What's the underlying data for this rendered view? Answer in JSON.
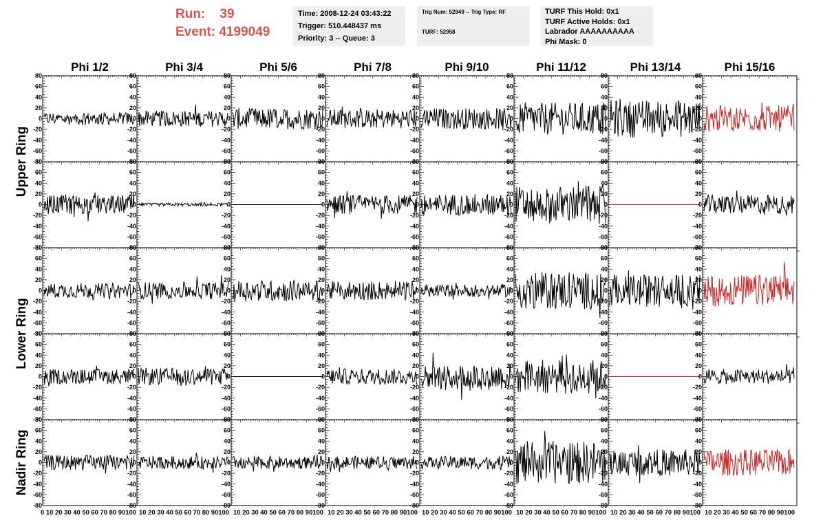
{
  "header": {
    "run_label": "Run:",
    "run_value": "39",
    "event_label": "Event:",
    "event_value": "4199049"
  },
  "info_box_1": {
    "time": "Time: 2008-12-24 03:43:22",
    "trigger": "Trigger: 510.448437 ms",
    "priority": "Priority: 3 -- Queue: 3"
  },
  "info_box_2": {
    "trig": "Trig Num: 52949 -- Trig Type: RF",
    "turf": "TURF: 52958"
  },
  "info_box_3": {
    "hold": "TURF This Hold: 0x1",
    "active": "TURF Active Holds: 0x1",
    "labrador": "Labrador AAAAAAAAAA",
    "phimask": "Phi Mask: 0"
  },
  "colors": {
    "trace": "#000000",
    "highlight": "#cc2222",
    "header_red": "#d9534f"
  },
  "chart_data": {
    "type": "line",
    "columns": [
      "Phi 1/2",
      "Phi 3/4",
      "Phi 5/6",
      "Phi 7/8",
      "Phi 9/10",
      "Phi 11/12",
      "Phi 13/14",
      "Phi 15/16"
    ],
    "ring_labels": [
      {
        "text": "Upper Ring",
        "rows": [
          0,
          1
        ]
      },
      {
        "text": "Lower Ring",
        "rows": [
          2,
          3
        ]
      },
      {
        "text": "Nadir Ring",
        "rows": [
          4,
          4
        ]
      }
    ],
    "xlim": [
      0,
      100
    ],
    "ylim": [
      -80,
      80
    ],
    "y_ticks": [
      "80",
      "60",
      "40",
      "20",
      "0",
      "-20",
      "-40",
      "-60",
      "-80"
    ],
    "x_tick_text": [
      "0 10 20 30 40 50 60 70 80 90100",
      "10 20 30 40 50 60 70 80 90100",
      "10 20 30 40 50 60 70 80 90100",
      "10 20 30 40 50 60 70 80 90100",
      "10 20 30 40 50 60 70 80 90100",
      "10 20 30 40 50 60 70 80 90100",
      "10 20 30 40 50 60 70 80 90100",
      "10 20 30 40 50 60 70 80 90100"
    ],
    "amplitudes": [
      [
        12,
        15,
        20,
        18,
        20,
        30,
        35,
        25
      ],
      [
        18,
        3,
        0,
        18,
        20,
        35,
        0,
        18
      ],
      [
        14,
        16,
        20,
        18,
        12,
        35,
        30,
        30
      ],
      [
        14,
        16,
        0,
        15,
        25,
        32,
        0,
        14
      ],
      [
        14,
        12,
        12,
        12,
        12,
        40,
        25,
        25
      ]
    ],
    "colors_grid": [
      [
        "k",
        "k",
        "k",
        "k",
        "k",
        "k",
        "k",
        "r"
      ],
      [
        "k",
        "k",
        "k",
        "k",
        "k",
        "k",
        "r",
        "k"
      ],
      [
        "k",
        "k",
        "k",
        "k",
        "k",
        "k",
        "k",
        "r"
      ],
      [
        "k",
        "k",
        "k",
        "k",
        "k",
        "k",
        "r",
        "k"
      ],
      [
        "k",
        "k",
        "k",
        "k",
        "k",
        "k",
        "k",
        "r"
      ]
    ]
  }
}
